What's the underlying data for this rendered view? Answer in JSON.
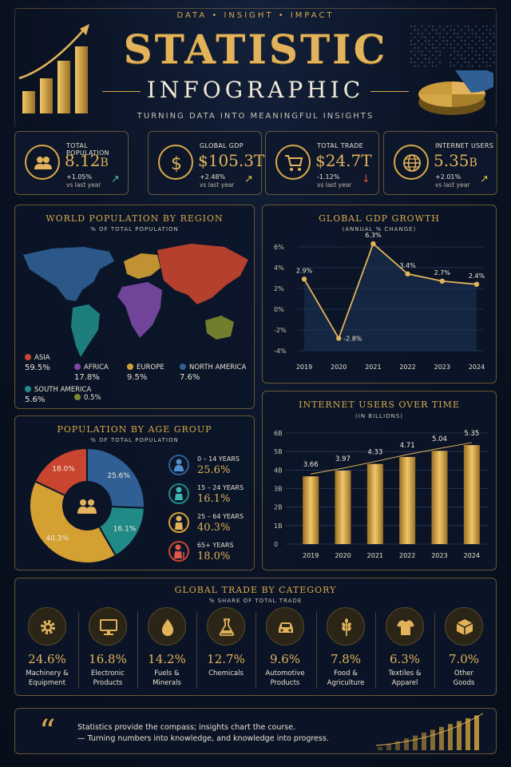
{
  "header": {
    "tagline": "DATA  •  INSIGHT  •  IMPACT",
    "title_main": "STATISTIC",
    "title_sub": "INFOGRAPHIC",
    "subtitle": "TURNING DATA INTO MEANINGFUL INSIGHTS"
  },
  "kpis": [
    {
      "label": "TOTAL POPULATION",
      "value": "8.12",
      "unit": "B",
      "change": "+1.05%",
      "vs": "vs last year",
      "trend": "up",
      "icon": "people-icon"
    },
    {
      "label": "GLOBAL GDP",
      "value": "$105.3T",
      "unit": "",
      "change": "+2.48%",
      "vs": "vs last year",
      "trend": "up",
      "icon": "dollar-icon"
    },
    {
      "label": "TOTAL TRADE",
      "value": "$24.7T",
      "unit": "",
      "change": "-1.12%",
      "vs": "vs last year",
      "trend": "down",
      "icon": "cart-icon"
    },
    {
      "label": "INTERNET USERS",
      "value": "5.35",
      "unit": "B",
      "change": "+2.01%",
      "vs": "vs last year",
      "trend": "up",
      "icon": "globe-icon"
    }
  ],
  "colors": {
    "gold": "#d9a94a",
    "asia": "#c9452f",
    "africa": "#7b4aa6",
    "europe": "#d4a032",
    "north_america": "#2f5f95",
    "south_america": "#1f8a86",
    "oceania": "#7c8a2e",
    "up": "#4cc3a3",
    "down": "#d9493a"
  },
  "world_population": {
    "title": "WORLD POPULATION BY REGION",
    "subtitle": "% OF TOTAL POPULATION",
    "regions": [
      {
        "name": "ASIA",
        "value": "59.5%",
        "color": "#c9452f"
      },
      {
        "name": "AFRICA",
        "value": "17.8%",
        "color": "#7b4aa6"
      },
      {
        "name": "EUROPE",
        "value": "9.5%",
        "color": "#d4a032"
      },
      {
        "name": "NORTH AMERICA",
        "value": "7.6%",
        "color": "#2f5f95"
      },
      {
        "name": "SOUTH AMERICA",
        "value": "5.6%",
        "color": "#1f8a86"
      },
      {
        "name": "",
        "value": "0.5%",
        "color": "#7c8a2e"
      }
    ]
  },
  "gdp_growth": {
    "title": "GLOBAL GDP GROWTH",
    "subtitle": "(ANNUAL % CHANGE)"
  },
  "internet_users": {
    "title": "INTERNET USERS OVER TIME",
    "subtitle": "(IN BILLIONS)"
  },
  "age_group": {
    "title": "POPULATION BY AGE GROUP",
    "subtitle": "% OF TOTAL POPULATION",
    "groups": [
      {
        "label": "0 – 14 YEARS",
        "value": "25.6%",
        "color": "#2f5f95"
      },
      {
        "label": "15 – 24 YEARS",
        "value": "16.1%",
        "color": "#1f8a86"
      },
      {
        "label": "25 – 64 YEARS",
        "value": "40.3%",
        "color": "#d4a032"
      },
      {
        "label": "65+ YEARS",
        "value": "18.0%",
        "color": "#c9452f"
      }
    ]
  },
  "trade": {
    "title": "GLOBAL TRADE BY CATEGORY",
    "subtitle": "% SHARE OF TOTAL TRADE",
    "items": [
      {
        "value": "24.6%",
        "line1": "Machinery &",
        "line2": "Equipment",
        "icon": "gear-icon"
      },
      {
        "value": "16.8%",
        "line1": "Electronic",
        "line2": "Products",
        "icon": "monitor-icon"
      },
      {
        "value": "14.2%",
        "line1": "Fuels &",
        "line2": "Minerals",
        "icon": "drop-icon"
      },
      {
        "value": "12.7%",
        "line1": "Chemicals",
        "line2": "",
        "icon": "flask-icon"
      },
      {
        "value": "9.6%",
        "line1": "Automotive",
        "line2": "Products",
        "icon": "car-icon"
      },
      {
        "value": "7.8%",
        "line1": "Food &",
        "line2": "Agriculture",
        "icon": "wheat-icon"
      },
      {
        "value": "6.3%",
        "line1": "Textiles &",
        "line2": "Apparel",
        "icon": "shirt-icon"
      },
      {
        "value": "7.0%",
        "line1": "Other",
        "line2": "Goods",
        "icon": "box-icon"
      }
    ]
  },
  "quote": {
    "mark": "“",
    "line1": "Statistics provide the compass; insights chart the course.",
    "line2": "— Turning numbers into knowledge, and knowledge into progress."
  },
  "chart_data": [
    {
      "type": "line",
      "title": "GLOBAL GDP GROWTH",
      "subtitle": "(ANNUAL % CHANGE)",
      "x": [
        "2019",
        "2020",
        "2021",
        "2022",
        "2023",
        "2024"
      ],
      "series": [
        {
          "values": [
            2.9,
            -2.8,
            6.3,
            3.4,
            2.7,
            2.4
          ]
        }
      ],
      "labels": [
        "2.9%",
        "-2.8%",
        "6.3%",
        "3.4%",
        "2.7%",
        "2.4%"
      ],
      "yticks": [
        "6%",
        "4%",
        "2%",
        "0%",
        "-2%",
        "-4%"
      ],
      "ylim": [
        -4,
        6
      ],
      "grid": true
    },
    {
      "type": "bar",
      "title": "INTERNET USERS OVER TIME",
      "subtitle": "(IN BILLIONS)",
      "categories": [
        "2019",
        "2020",
        "2021",
        "2022",
        "2023",
        "2024"
      ],
      "values": [
        3.66,
        3.97,
        4.33,
        4.71,
        5.04,
        5.35
      ],
      "labels": [
        "3.66",
        "3.97",
        "4.33",
        "4.71",
        "5.04",
        "5.35"
      ],
      "yticks": [
        "6B",
        "5B",
        "4B",
        "3B",
        "2B",
        "1B",
        "0"
      ],
      "ylim": [
        0,
        6
      ],
      "grid": true
    },
    {
      "type": "pie",
      "title": "POPULATION BY AGE GROUP",
      "categories": [
        "0 – 14 YEARS",
        "15 – 24 YEARS",
        "25 – 64 YEARS",
        "65+ YEARS"
      ],
      "values": [
        25.6,
        16.1,
        40.3,
        18.0
      ],
      "labels": [
        "25.6%",
        "16.1%",
        "40.3%",
        "18.0%"
      ],
      "colors": [
        "#2f5f95",
        "#1f8a86",
        "#d4a032",
        "#c9452f"
      ]
    }
  ]
}
